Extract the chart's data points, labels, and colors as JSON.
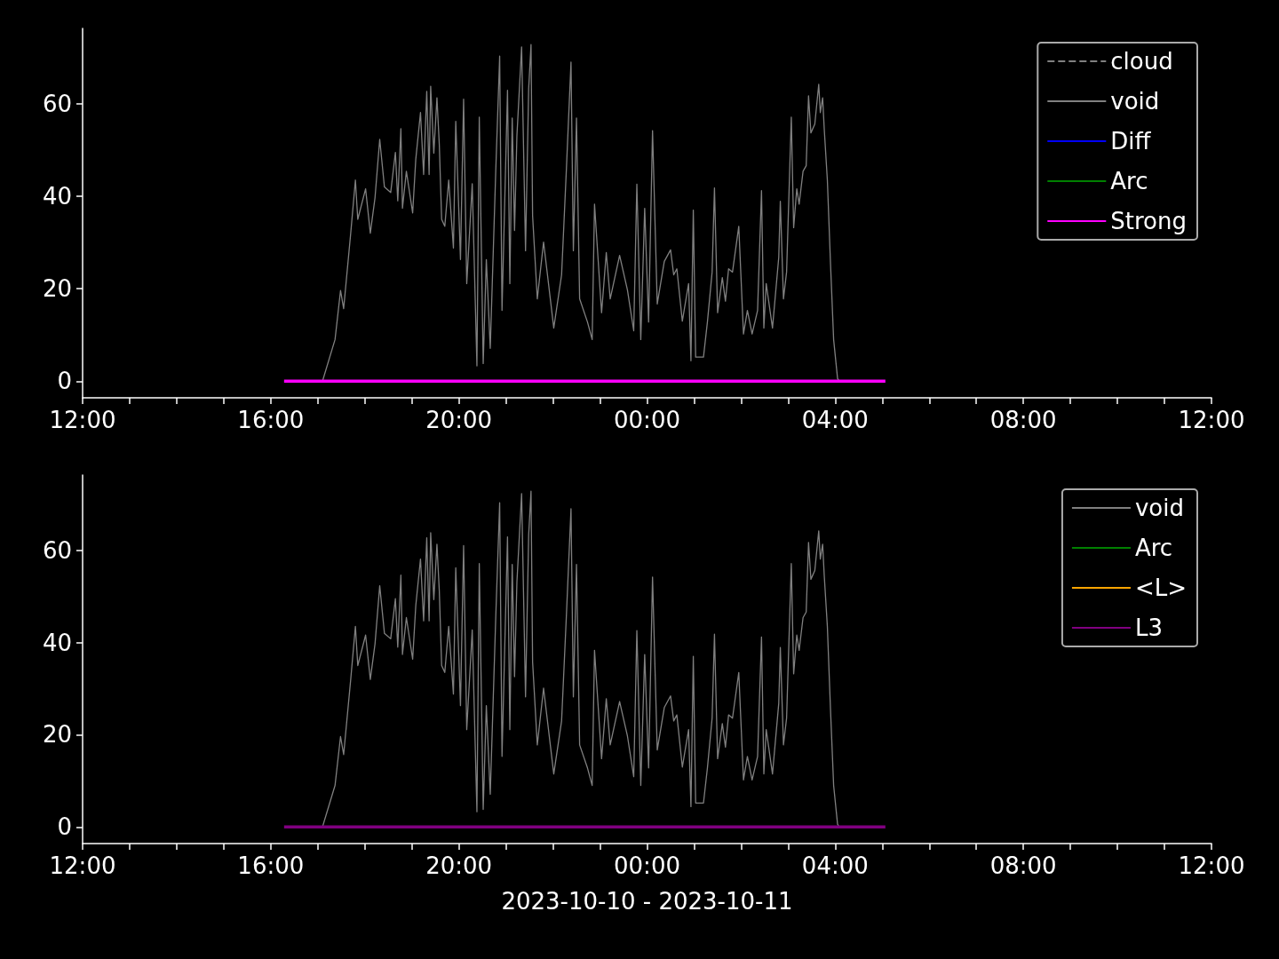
{
  "chart_data": [
    {
      "type": "line",
      "xlim": [
        "2023-10-10T12:00",
        "2023-10-11T12:00"
      ],
      "ylim": [
        -3.6,
        76.3
      ],
      "xticks": [
        {
          "value": "2023-10-10T12:00",
          "label": "12:00"
        },
        {
          "value": "2023-10-10T13:00",
          "label": null
        },
        {
          "value": "2023-10-10T14:00",
          "label": null
        },
        {
          "value": "2023-10-10T15:00",
          "label": null
        },
        {
          "value": "2023-10-10T16:00",
          "label": "16:00"
        },
        {
          "value": "2023-10-10T17:00",
          "label": null
        },
        {
          "value": "2023-10-10T18:00",
          "label": null
        },
        {
          "value": "2023-10-10T19:00",
          "label": null
        },
        {
          "value": "2023-10-10T20:00",
          "label": "20:00"
        },
        {
          "value": "2023-10-10T21:00",
          "label": null
        },
        {
          "value": "2023-10-10T22:00",
          "label": null
        },
        {
          "value": "2023-10-10T23:00",
          "label": null
        },
        {
          "value": "2023-10-11T00:00",
          "label": "00:00"
        },
        {
          "value": "2023-10-11T01:00",
          "label": null
        },
        {
          "value": "2023-10-11T02:00",
          "label": null
        },
        {
          "value": "2023-10-11T03:00",
          "label": null
        },
        {
          "value": "2023-10-11T04:00",
          "label": "04:00"
        },
        {
          "value": "2023-10-11T05:00",
          "label": null
        },
        {
          "value": "2023-10-11T06:00",
          "label": null
        },
        {
          "value": "2023-10-11T07:00",
          "label": null
        },
        {
          "value": "2023-10-11T08:00",
          "label": "08:00"
        },
        {
          "value": "2023-10-11T09:00",
          "label": null
        },
        {
          "value": "2023-10-11T10:00",
          "label": null
        },
        {
          "value": "2023-10-11T11:00",
          "label": null
        },
        {
          "value": "2023-10-11T12:00",
          "label": "12:00"
        }
      ],
      "yticks": [
        0,
        20,
        40,
        60
      ],
      "grid": false,
      "legend": "top right",
      "marker": "none",
      "series": [
        {
          "name": "cloud",
          "color": "#808080",
          "line_style": "dashed"
        },
        {
          "name": "void",
          "color": "#808080",
          "x": [
            "2023-10-10T17:06",
            "2023-10-10T17:22",
            "2023-10-10T17:29",
            "2023-10-10T17:33",
            "2023-10-10T17:42",
            "2023-10-10T17:48",
            "2023-10-10T17:51",
            "2023-10-10T18:01",
            "2023-10-10T18:07",
            "2023-10-10T18:13",
            "2023-10-10T18:19",
            "2023-10-10T18:25",
            "2023-10-10T18:33",
            "2023-10-10T18:39",
            "2023-10-10T18:42",
            "2023-10-10T18:46",
            "2023-10-10T18:48",
            "2023-10-10T18:53",
            "2023-10-10T19:01",
            "2023-10-10T19:05",
            "2023-10-10T19:11",
            "2023-10-10T19:15",
            "2023-10-10T19:19",
            "2023-10-10T19:22",
            "2023-10-10T19:24",
            "2023-10-10T19:28",
            "2023-10-10T19:32",
            "2023-10-10T19:35",
            "2023-10-10T19:38",
            "2023-10-10T19:42",
            "2023-10-10T19:47",
            "2023-10-10T19:53",
            "2023-10-10T19:56",
            "2023-10-10T20:02",
            "2023-10-10T20:06",
            "2023-10-10T20:10",
            "2023-10-10T20:17",
            "2023-10-10T20:23",
            "2023-10-10T20:26",
            "2023-10-10T20:31",
            "2023-10-10T20:35",
            "2023-10-10T20:40",
            "2023-10-10T20:47",
            "2023-10-10T20:52",
            "2023-10-10T20:55",
            "2023-10-10T21:02",
            "2023-10-10T21:05",
            "2023-10-10T21:08",
            "2023-10-10T21:11",
            "2023-10-10T21:14",
            "2023-10-10T21:20",
            "2023-10-10T21:25",
            "2023-10-10T21:29",
            "2023-10-10T21:32",
            "2023-10-10T21:34",
            "2023-10-10T21:40",
            "2023-10-10T21:48",
            "2023-10-10T22:01",
            "2023-10-10T22:11",
            "2023-10-10T22:17",
            "2023-10-10T22:23",
            "2023-10-10T22:26",
            "2023-10-10T22:30",
            "2023-10-10T22:34",
            "2023-10-10T22:44",
            "2023-10-10T22:50",
            "2023-10-10T22:53",
            "2023-10-10T23:02",
            "2023-10-10T23:08",
            "2023-10-10T23:13",
            "2023-10-10T23:25",
            "2023-10-10T23:35",
            "2023-10-10T23:43",
            "2023-10-10T23:47",
            "2023-10-10T23:52",
            "2023-10-10T23:57",
            "2023-10-11T00:02",
            "2023-10-11T00:07",
            "2023-10-11T00:13",
            "2023-10-11T00:22",
            "2023-10-11T00:30",
            "2023-10-11T00:34",
            "2023-10-11T00:38",
            "2023-10-11T00:45",
            "2023-10-11T00:53",
            "2023-10-11T00:56",
            "2023-10-11T00:59",
            "2023-10-11T01:02",
            "2023-10-11T01:12",
            "2023-10-11T01:17",
            "2023-10-11T01:23",
            "2023-10-11T01:26",
            "2023-10-11T01:30",
            "2023-10-11T01:36",
            "2023-10-11T01:40",
            "2023-10-11T01:44",
            "2023-10-11T01:49",
            "2023-10-11T01:57",
            "2023-10-11T02:03",
            "2023-10-11T02:08",
            "2023-10-11T02:14",
            "2023-10-11T02:21",
            "2023-10-11T02:26",
            "2023-10-11T02:29",
            "2023-10-11T02:32",
            "2023-10-11T02:40",
            "2023-10-11T02:48",
            "2023-10-11T02:50",
            "2023-10-11T02:54",
            "2023-10-11T02:58",
            "2023-10-11T03:04",
            "2023-10-11T03:07",
            "2023-10-11T03:11",
            "2023-10-11T03:14",
            "2023-10-11T03:19",
            "2023-10-11T03:23",
            "2023-10-11T03:26",
            "2023-10-11T03:29",
            "2023-10-11T03:34",
            "2023-10-11T03:39",
            "2023-10-11T03:41",
            "2023-10-11T03:44",
            "2023-10-11T03:46",
            "2023-10-11T03:50",
            "2023-10-11T03:54",
            "2023-10-11T03:58",
            "2023-10-11T04:03",
            "2023-10-11T04:05"
          ],
          "values": [
            0,
            9,
            19.6,
            15.7,
            32,
            43.5,
            35,
            41.6,
            32,
            39.7,
            52.3,
            42,
            40.8,
            49.5,
            39,
            54.6,
            37.4,
            45.4,
            36.4,
            48,
            58.1,
            44.7,
            62.7,
            44.7,
            63.8,
            49.3,
            61.3,
            51.2,
            35,
            33.5,
            43.5,
            28.8,
            56.2,
            26.3,
            61,
            21.1,
            42.7,
            3.3,
            57.1,
            3.8,
            26.3,
            7.1,
            45.4,
            70.3,
            15.3,
            62.9,
            21.1,
            56.9,
            32.6,
            53.1,
            72.3,
            28.2,
            63.3,
            72.8,
            35.8,
            17.8,
            30.1,
            11.5,
            23,
            45.4,
            69,
            28.2,
            56.9,
            17.8,
            12.8,
            9,
            38.3,
            14.8,
            27.8,
            17.8,
            27.2,
            19.7,
            10.9,
            42.6,
            9,
            37.4,
            12.8,
            54.2,
            16.7,
            25.9,
            28.4,
            23,
            24.3,
            13,
            21.1,
            4.4,
            37,
            5.2,
            5.2,
            12.8,
            23.6,
            41.8,
            14.8,
            22.4,
            17.3,
            24.3,
            23.6,
            33.5,
            10.2,
            15.3,
            10.2,
            15.3,
            41.2,
            11.5,
            21.1,
            11.5,
            26.8,
            38.9,
            17.8,
            23.6,
            57.1,
            33.2,
            41.6,
            38.3,
            45.4,
            46.6,
            61.7,
            53.7,
            55.6,
            64.2,
            58.1,
            61.3,
            54.6,
            43.5,
            25.5,
            9,
            0.6,
            0
          ]
        },
        {
          "name": "Diff",
          "color": "#0000ff"
        },
        {
          "name": "Arc",
          "color": "#008000"
        },
        {
          "name": "Strong",
          "color": "#ff00ff",
          "x": [
            "2023-10-10T16:17",
            "2023-10-11T05:04"
          ],
          "values": [
            0,
            0
          ]
        }
      ]
    },
    {
      "type": "line",
      "xlabel": "2023-10-10 - 2023-10-11",
      "xlim": [
        "2023-10-10T12:00",
        "2023-10-11T12:00"
      ],
      "ylim": [
        -3.6,
        76.3
      ],
      "xticks": [
        {
          "value": "2023-10-10T12:00",
          "label": "12:00"
        },
        {
          "value": "2023-10-10T13:00",
          "label": null
        },
        {
          "value": "2023-10-10T14:00",
          "label": null
        },
        {
          "value": "2023-10-10T15:00",
          "label": null
        },
        {
          "value": "2023-10-10T16:00",
          "label": "16:00"
        },
        {
          "value": "2023-10-10T17:00",
          "label": null
        },
        {
          "value": "2023-10-10T18:00",
          "label": null
        },
        {
          "value": "2023-10-10T19:00",
          "label": null
        },
        {
          "value": "2023-10-10T20:00",
          "label": "20:00"
        },
        {
          "value": "2023-10-10T21:00",
          "label": null
        },
        {
          "value": "2023-10-10T22:00",
          "label": null
        },
        {
          "value": "2023-10-10T23:00",
          "label": null
        },
        {
          "value": "2023-10-11T00:00",
          "label": "00:00"
        },
        {
          "value": "2023-10-11T01:00",
          "label": null
        },
        {
          "value": "2023-10-11T02:00",
          "label": null
        },
        {
          "value": "2023-10-11T03:00",
          "label": null
        },
        {
          "value": "2023-10-11T04:00",
          "label": "04:00"
        },
        {
          "value": "2023-10-11T05:00",
          "label": null
        },
        {
          "value": "2023-10-11T06:00",
          "label": null
        },
        {
          "value": "2023-10-11T07:00",
          "label": null
        },
        {
          "value": "2023-10-11T08:00",
          "label": "08:00"
        },
        {
          "value": "2023-10-11T09:00",
          "label": null
        },
        {
          "value": "2023-10-11T10:00",
          "label": null
        },
        {
          "value": "2023-10-11T11:00",
          "label": null
        },
        {
          "value": "2023-10-11T12:00",
          "label": "12:00"
        }
      ],
      "yticks": [
        0,
        20,
        40,
        60
      ],
      "grid": false,
      "legend": "top right",
      "marker": "none",
      "series": [
        {
          "name": "void",
          "color": "#808080",
          "x": [
            "2023-10-10T17:06",
            "2023-10-10T17:22",
            "2023-10-10T17:29",
            "2023-10-10T17:33",
            "2023-10-10T17:42",
            "2023-10-10T17:48",
            "2023-10-10T17:51",
            "2023-10-10T18:01",
            "2023-10-10T18:07",
            "2023-10-10T18:13",
            "2023-10-10T18:19",
            "2023-10-10T18:25",
            "2023-10-10T18:33",
            "2023-10-10T18:39",
            "2023-10-10T18:42",
            "2023-10-10T18:46",
            "2023-10-10T18:48",
            "2023-10-10T18:53",
            "2023-10-10T19:01",
            "2023-10-10T19:05",
            "2023-10-10T19:11",
            "2023-10-10T19:15",
            "2023-10-10T19:19",
            "2023-10-10T19:22",
            "2023-10-10T19:24",
            "2023-10-10T19:28",
            "2023-10-10T19:32",
            "2023-10-10T19:35",
            "2023-10-10T19:38",
            "2023-10-10T19:42",
            "2023-10-10T19:47",
            "2023-10-10T19:53",
            "2023-10-10T19:56",
            "2023-10-10T20:02",
            "2023-10-10T20:06",
            "2023-10-10T20:10",
            "2023-10-10T20:17",
            "2023-10-10T20:23",
            "2023-10-10T20:26",
            "2023-10-10T20:31",
            "2023-10-10T20:35",
            "2023-10-10T20:40",
            "2023-10-10T20:47",
            "2023-10-10T20:52",
            "2023-10-10T20:55",
            "2023-10-10T21:02",
            "2023-10-10T21:05",
            "2023-10-10T21:08",
            "2023-10-10T21:11",
            "2023-10-10T21:14",
            "2023-10-10T21:20",
            "2023-10-10T21:25",
            "2023-10-10T21:29",
            "2023-10-10T21:32",
            "2023-10-10T21:34",
            "2023-10-10T21:40",
            "2023-10-10T21:48",
            "2023-10-10T22:01",
            "2023-10-10T22:11",
            "2023-10-10T22:17",
            "2023-10-10T22:23",
            "2023-10-10T22:26",
            "2023-10-10T22:30",
            "2023-10-10T22:34",
            "2023-10-10T22:44",
            "2023-10-10T22:50",
            "2023-10-10T22:53",
            "2023-10-10T23:02",
            "2023-10-10T23:08",
            "2023-10-10T23:13",
            "2023-10-10T23:25",
            "2023-10-10T23:35",
            "2023-10-10T23:43",
            "2023-10-10T23:47",
            "2023-10-10T23:52",
            "2023-10-10T23:57",
            "2023-10-11T00:02",
            "2023-10-11T00:07",
            "2023-10-11T00:13",
            "2023-10-11T00:22",
            "2023-10-11T00:30",
            "2023-10-11T00:34",
            "2023-10-11T00:38",
            "2023-10-11T00:45",
            "2023-10-11T00:53",
            "2023-10-11T00:56",
            "2023-10-11T00:59",
            "2023-10-11T01:02",
            "2023-10-11T01:12",
            "2023-10-11T01:17",
            "2023-10-11T01:23",
            "2023-10-11T01:26",
            "2023-10-11T01:30",
            "2023-10-11T01:36",
            "2023-10-11T01:40",
            "2023-10-11T01:44",
            "2023-10-11T01:49",
            "2023-10-11T01:57",
            "2023-10-11T02:03",
            "2023-10-11T02:08",
            "2023-10-11T02:14",
            "2023-10-11T02:21",
            "2023-10-11T02:26",
            "2023-10-11T02:29",
            "2023-10-11T02:32",
            "2023-10-11T02:40",
            "2023-10-11T02:48",
            "2023-10-11T02:50",
            "2023-10-11T02:54",
            "2023-10-11T02:58",
            "2023-10-11T03:04",
            "2023-10-11T03:07",
            "2023-10-11T03:11",
            "2023-10-11T03:14",
            "2023-10-11T03:19",
            "2023-10-11T03:23",
            "2023-10-11T03:26",
            "2023-10-11T03:29",
            "2023-10-11T03:34",
            "2023-10-11T03:39",
            "2023-10-11T03:41",
            "2023-10-11T03:44",
            "2023-10-11T03:46",
            "2023-10-11T03:50",
            "2023-10-11T03:54",
            "2023-10-11T03:58",
            "2023-10-11T04:03",
            "2023-10-11T04:05"
          ],
          "values": [
            0,
            9,
            19.6,
            15.7,
            32,
            43.5,
            35,
            41.6,
            32,
            39.7,
            52.3,
            42,
            40.8,
            49.5,
            39,
            54.6,
            37.4,
            45.4,
            36.4,
            48,
            58.1,
            44.7,
            62.7,
            44.7,
            63.8,
            49.3,
            61.3,
            51.2,
            35,
            33.5,
            43.5,
            28.8,
            56.2,
            26.3,
            61,
            21.1,
            42.7,
            3.3,
            57.1,
            3.8,
            26.3,
            7.1,
            45.4,
            70.3,
            15.3,
            62.9,
            21.1,
            56.9,
            32.6,
            53.1,
            72.3,
            28.2,
            63.3,
            72.8,
            35.8,
            17.8,
            30.1,
            11.5,
            23,
            45.4,
            69,
            28.2,
            56.9,
            17.8,
            12.8,
            9,
            38.3,
            14.8,
            27.8,
            17.8,
            27.2,
            19.7,
            10.9,
            42.6,
            9,
            37.4,
            12.8,
            54.2,
            16.7,
            25.9,
            28.4,
            23,
            24.3,
            13,
            21.1,
            4.4,
            37,
            5.2,
            5.2,
            12.8,
            23.6,
            41.8,
            14.8,
            22.4,
            17.3,
            24.3,
            23.6,
            33.5,
            10.2,
            15.3,
            10.2,
            15.3,
            41.2,
            11.5,
            21.1,
            11.5,
            26.8,
            38.9,
            17.8,
            23.6,
            57.1,
            33.2,
            41.6,
            38.3,
            45.4,
            46.6,
            61.7,
            53.7,
            55.6,
            64.2,
            58.1,
            61.3,
            54.6,
            43.5,
            25.5,
            9,
            0.6,
            0
          ]
        },
        {
          "name": "Arc",
          "color": "#008000"
        },
        {
          "name": "<L>",
          "color": "#ffa500"
        },
        {
          "name": "L3",
          "color": "#800080",
          "x": [
            "2023-10-10T16:17",
            "2023-10-11T05:04"
          ],
          "values": [
            0,
            0
          ]
        }
      ]
    }
  ]
}
